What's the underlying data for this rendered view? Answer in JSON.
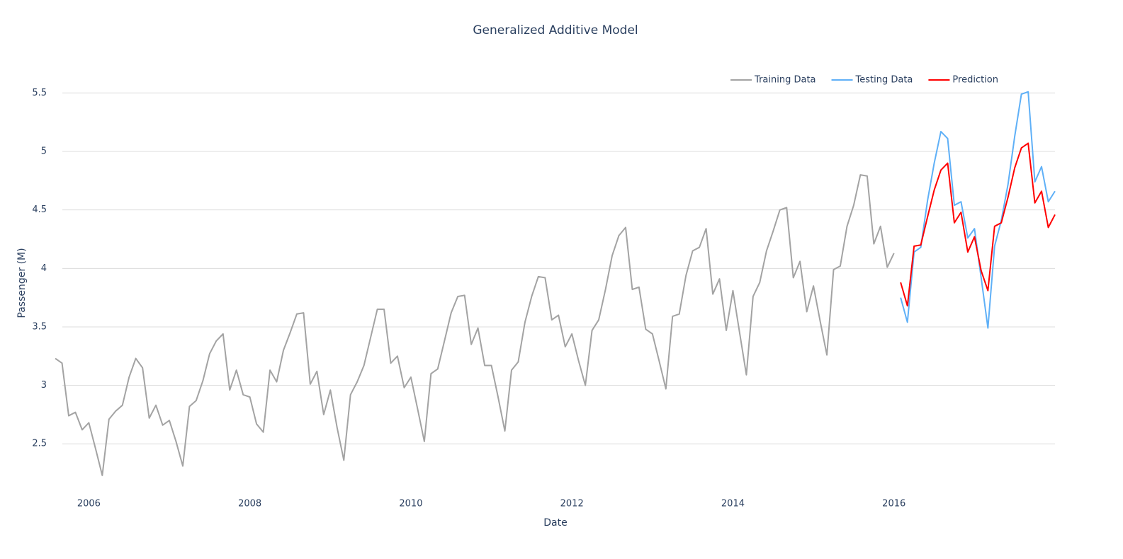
{
  "chart_data": {
    "type": "line",
    "title": "Generalized Additive Model",
    "x_label": "Date",
    "y_label": "Passenger (M)",
    "xlim": [
      2005.583,
      2018.0
    ],
    "ylim": [
      2.09,
      5.69
    ],
    "xticks": [
      2006,
      2008,
      2010,
      2012,
      2014,
      2016
    ],
    "yticks": [
      2.5,
      3,
      3.5,
      4,
      4.5,
      5,
      5.5
    ],
    "grid": true,
    "legend": "top-right",
    "series": [
      {
        "name": "Training Data",
        "color": "#a3a3a3",
        "x": [
          2005.583,
          2005.667,
          2005.75,
          2005.833,
          2005.917,
          2006.0,
          2006.083,
          2006.167,
          2006.25,
          2006.333,
          2006.417,
          2006.5,
          2006.583,
          2006.667,
          2006.75,
          2006.833,
          2006.917,
          2007.0,
          2007.083,
          2007.167,
          2007.25,
          2007.333,
          2007.417,
          2007.5,
          2007.583,
          2007.667,
          2007.75,
          2007.833,
          2007.917,
          2008.0,
          2008.083,
          2008.167,
          2008.25,
          2008.333,
          2008.417,
          2008.5,
          2008.583,
          2008.667,
          2008.75,
          2008.833,
          2008.917,
          2009.0,
          2009.083,
          2009.167,
          2009.25,
          2009.333,
          2009.417,
          2009.5,
          2009.583,
          2009.667,
          2009.75,
          2009.833,
          2009.917,
          2010.0,
          2010.083,
          2010.167,
          2010.25,
          2010.333,
          2010.417,
          2010.5,
          2010.583,
          2010.667,
          2010.75,
          2010.833,
          2010.917,
          2011.0,
          2011.083,
          2011.167,
          2011.25,
          2011.333,
          2011.417,
          2011.5,
          2011.583,
          2011.667,
          2011.75,
          2011.833,
          2011.917,
          2012.0,
          2012.083,
          2012.167,
          2012.25,
          2012.333,
          2012.417,
          2012.5,
          2012.583,
          2012.667,
          2012.75,
          2012.833,
          2012.917,
          2013.0,
          2013.083,
          2013.167,
          2013.25,
          2013.333,
          2013.417,
          2013.5,
          2013.583,
          2013.667,
          2013.75,
          2013.833,
          2013.917,
          2014.0,
          2014.083,
          2014.167,
          2014.25,
          2014.333,
          2014.417,
          2014.5,
          2014.583,
          2014.667,
          2014.75,
          2014.833,
          2014.917,
          2015.0,
          2015.083,
          2015.167,
          2015.25,
          2015.333,
          2015.417,
          2015.5,
          2015.583,
          2015.667,
          2015.75,
          2015.833,
          2015.917,
          2016.0
        ],
        "values": [
          3.23,
          3.19,
          2.74,
          2.77,
          2.62,
          2.68,
          2.46,
          2.23,
          2.71,
          2.78,
          2.83,
          3.07,
          3.23,
          3.15,
          2.72,
          2.83,
          2.66,
          2.7,
          2.52,
          2.31,
          2.82,
          2.87,
          3.04,
          3.27,
          3.38,
          3.44,
          2.96,
          3.13,
          2.92,
          2.9,
          2.67,
          2.6,
          3.13,
          3.03,
          3.3,
          3.45,
          3.61,
          3.62,
          3.01,
          3.12,
          2.75,
          2.96,
          2.64,
          2.36,
          2.92,
          3.03,
          3.17,
          3.41,
          3.65,
          3.65,
          3.19,
          3.25,
          2.98,
          3.07,
          2.8,
          2.52,
          3.1,
          3.14,
          3.38,
          3.62,
          3.76,
          3.77,
          3.35,
          3.49,
          3.17,
          3.17,
          2.9,
          2.61,
          3.13,
          3.2,
          3.54,
          3.76,
          3.93,
          3.92,
          3.56,
          3.6,
          3.33,
          3.44,
          3.21,
          3.0,
          3.47,
          3.56,
          3.82,
          4.11,
          4.28,
          4.35,
          3.82,
          3.84,
          3.48,
          3.44,
          3.21,
          2.97,
          3.59,
          3.61,
          3.94,
          4.15,
          4.18,
          4.34,
          3.78,
          3.91,
          3.47,
          3.81,
          3.45,
          3.09,
          3.76,
          3.88,
          4.15,
          4.32,
          4.5,
          4.52,
          3.92,
          4.06,
          3.63,
          3.85,
          3.55,
          3.26,
          3.99,
          4.02,
          4.36,
          4.54,
          4.8,
          4.79,
          4.21,
          4.36,
          4.01,
          4.13
        ]
      },
      {
        "name": "Testing Data",
        "color": "#5fb0f7",
        "x": [
          2016.083,
          2016.167,
          2016.25,
          2016.333,
          2016.417,
          2016.5,
          2016.583,
          2016.667,
          2016.75,
          2016.833,
          2016.917,
          2017.0,
          2017.083,
          2017.167,
          2017.25,
          2017.333,
          2017.417,
          2017.5,
          2017.583,
          2017.667,
          2017.75,
          2017.833,
          2017.917,
          2018.0
        ],
        "values": [
          3.75,
          3.54,
          4.14,
          4.18,
          4.58,
          4.9,
          5.17,
          5.11,
          4.54,
          4.57,
          4.26,
          4.34,
          3.92,
          3.49,
          4.19,
          4.41,
          4.72,
          5.13,
          5.49,
          5.51,
          4.74,
          4.87,
          4.57,
          4.66
        ]
      },
      {
        "name": "Prediction",
        "color": "#ff0000",
        "x": [
          2016.083,
          2016.167,
          2016.25,
          2016.333,
          2016.417,
          2016.5,
          2016.583,
          2016.667,
          2016.75,
          2016.833,
          2016.917,
          2017.0,
          2017.083,
          2017.167,
          2017.25,
          2017.333,
          2017.417,
          2017.5,
          2017.583,
          2017.667,
          2017.75,
          2017.833,
          2017.917,
          2018.0
        ],
        "values": [
          3.88,
          3.68,
          4.19,
          4.2,
          4.44,
          4.67,
          4.84,
          4.9,
          4.39,
          4.48,
          4.14,
          4.27,
          3.98,
          3.81,
          4.36,
          4.39,
          4.61,
          4.86,
          5.03,
          5.07,
          4.56,
          4.66,
          4.35,
          4.46
        ]
      }
    ]
  }
}
